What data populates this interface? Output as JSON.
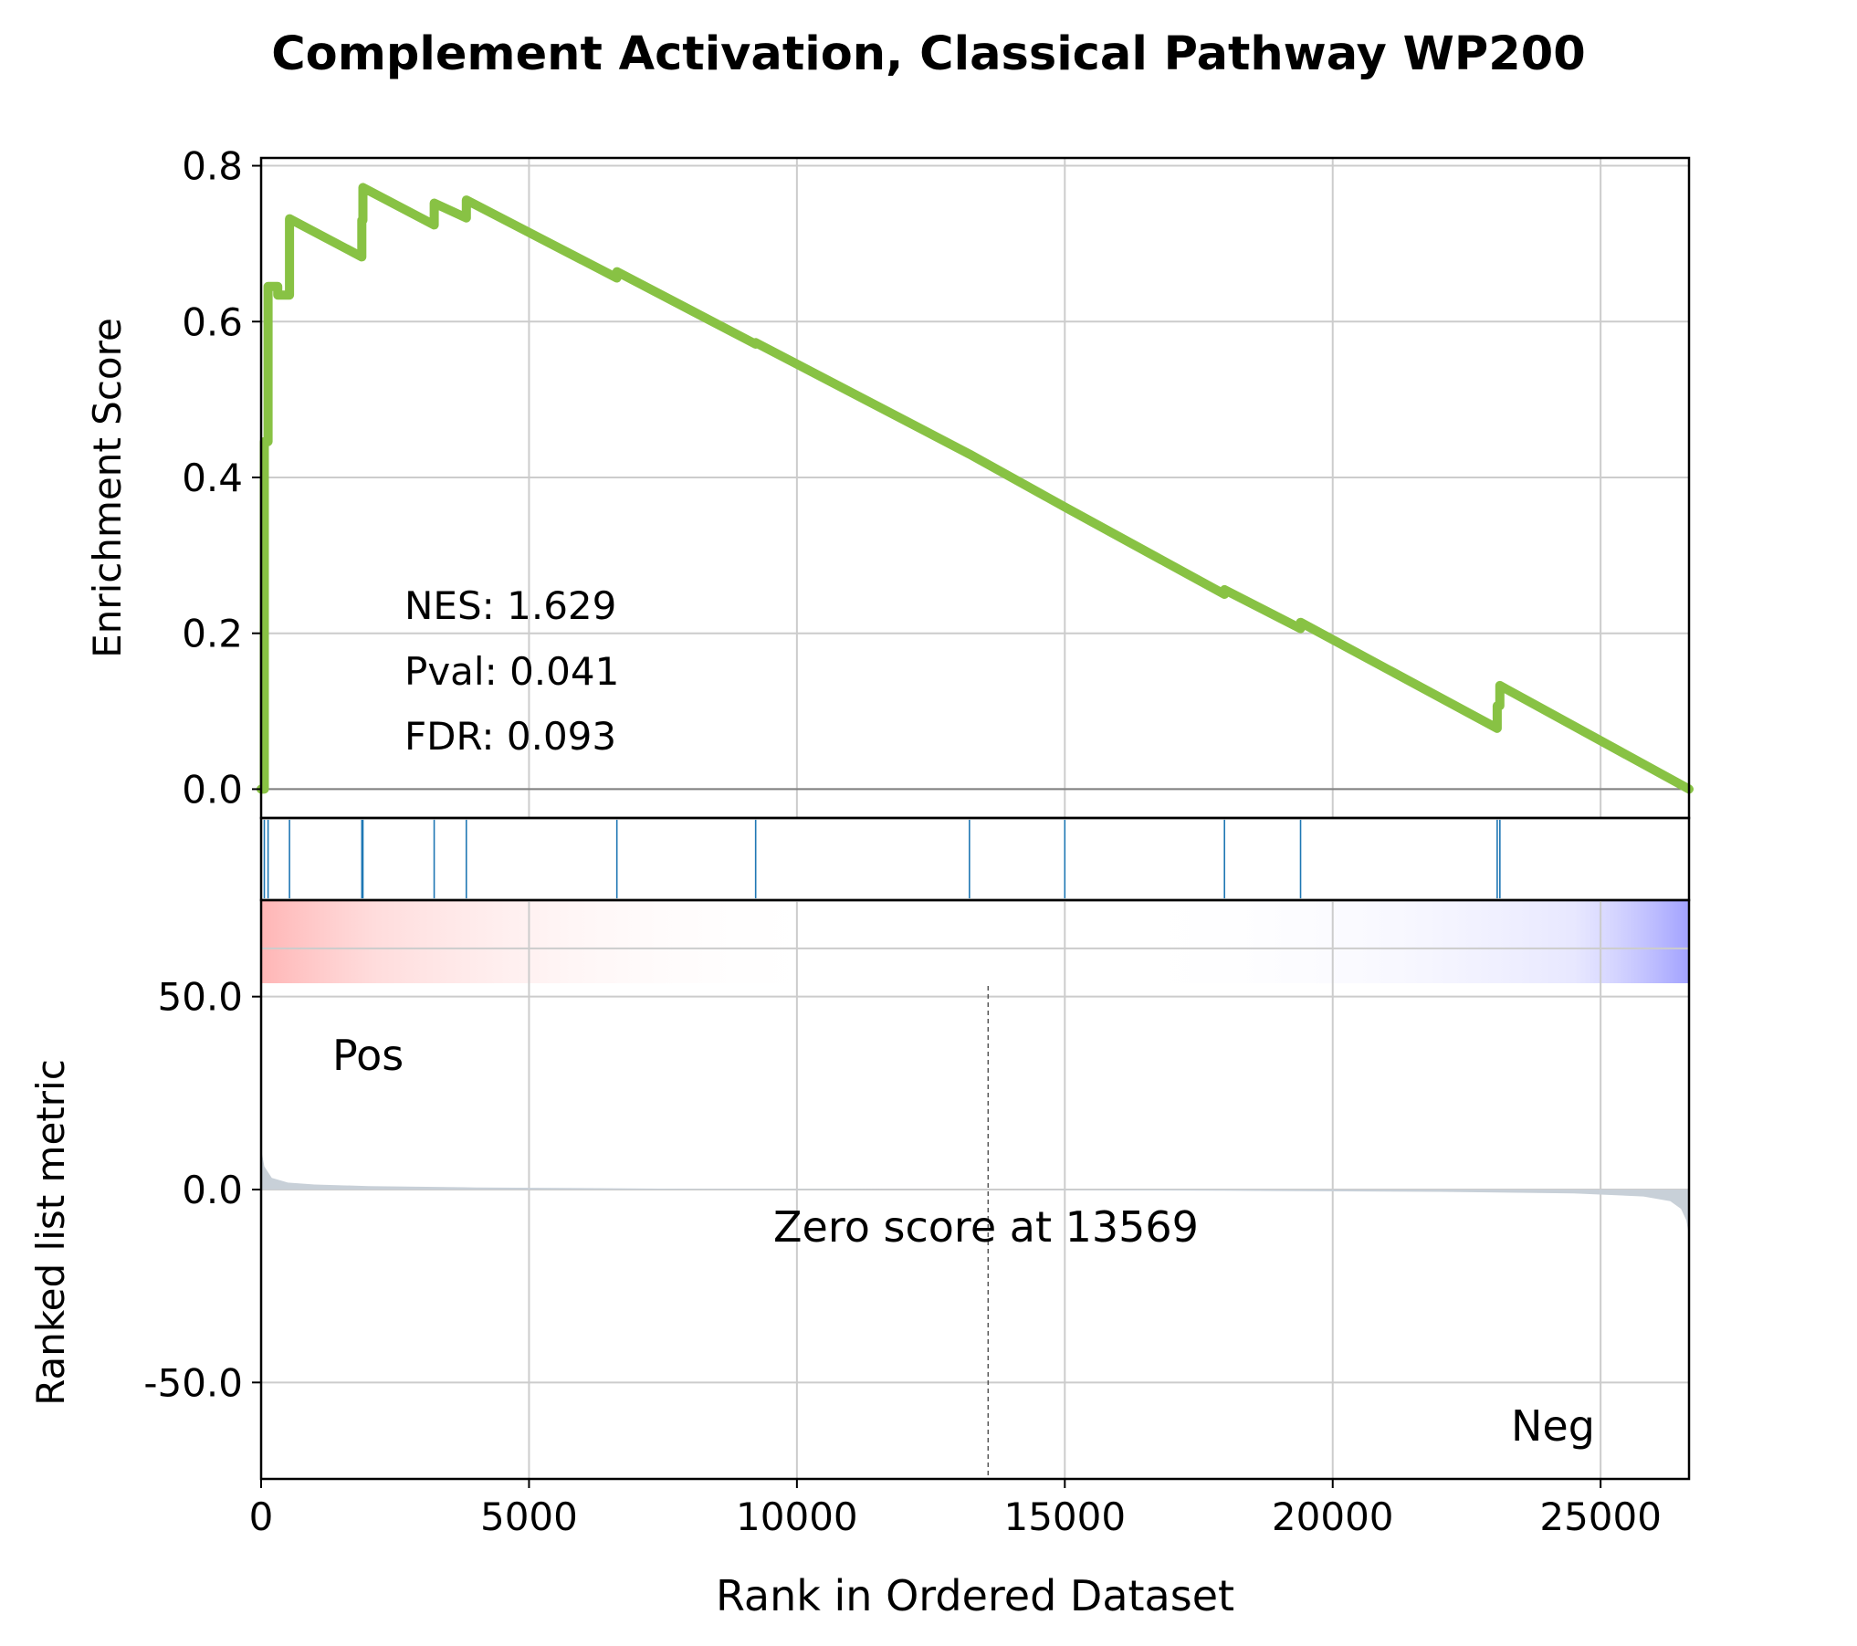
{
  "chart_data": {
    "type": "line",
    "title": "Complement Activation, Classical Pathway WP200",
    "xlabel": "Rank in Ordered Dataset",
    "xlim": [
      0,
      26650
    ],
    "x_ticks": [
      0,
      5000,
      10000,
      15000,
      20000,
      25000
    ],
    "x_tick_labels": [
      "0",
      "5000",
      "10000",
      "15000",
      "20000",
      "25000"
    ],
    "grid": true,
    "enrichment": {
      "ylabel": "Enrichment Score",
      "ylim": [
        -0.037,
        0.81
      ],
      "y_ticks": [
        0.0,
        0.2,
        0.4,
        0.6,
        0.8
      ],
      "y_tick_labels": [
        "0.0",
        "0.2",
        "0.4",
        "0.6",
        "0.8"
      ],
      "color": "#88c244",
      "series": [
        {
          "x": [
            0,
            60,
            60,
            130,
            130,
            310,
            310,
            530,
            530,
            1880,
            1880,
            1900,
            1900,
            3230,
            3230,
            3830,
            3830,
            6640,
            6640,
            9230,
            9230,
            13220,
            13220,
            15000,
            15000,
            17980,
            17980,
            19400,
            19400,
            23070,
            23070,
            23120,
            23120,
            26650
          ],
          "y": [
            0.0,
            0.0,
            0.446,
            0.446,
            0.645,
            0.645,
            0.634,
            0.634,
            0.732,
            0.683,
            0.73,
            0.73,
            0.772,
            0.724,
            0.752,
            0.733,
            0.756,
            0.656,
            0.664,
            0.571,
            0.573,
            0.43,
            0.43,
            0.362,
            0.362,
            0.25,
            0.256,
            0.206,
            0.214,
            0.078,
            0.107,
            0.107,
            0.133,
            0.0
          ]
        }
      ],
      "annotation": [
        "NES: 1.629",
        "Pval: 0.041",
        "FDR: 0.093"
      ]
    },
    "hits": {
      "color": "#1f77b4",
      "x": [
        60,
        130,
        530,
        1880,
        1900,
        3230,
        3830,
        6640,
        9230,
        13220,
        15000,
        17980,
        19400,
        23070,
        23120
      ]
    },
    "ranked_metric": {
      "ylabel": "Ranked list metric",
      "ylim": [
        -75,
        75
      ],
      "y_ticks": [
        50.0,
        0.0,
        -50.0
      ],
      "y_tick_labels": [
        "50.0",
        "0.0",
        "-50.0"
      ],
      "fill_color": "#c8d0d8",
      "zero_cross": 13569,
      "zero_label": "Zero score at 13569",
      "pos_label": "Pos",
      "neg_label": "Neg",
      "pos_color": "#ff0000",
      "neg_color": "#0000ff",
      "curve": {
        "x": [
          0,
          60,
          200,
          500,
          1000,
          2000,
          4000,
          8000,
          13569,
          18000,
          22000,
          24500,
          25800,
          26300,
          26500,
          26600,
          26650
        ],
        "y": [
          10.5,
          6.0,
          3.0,
          1.8,
          1.3,
          0.9,
          0.55,
          0.2,
          0.0,
          -0.3,
          -0.6,
          -1.0,
          -1.8,
          -3.0,
          -5.0,
          -8.0,
          -12.0
        ]
      }
    }
  }
}
